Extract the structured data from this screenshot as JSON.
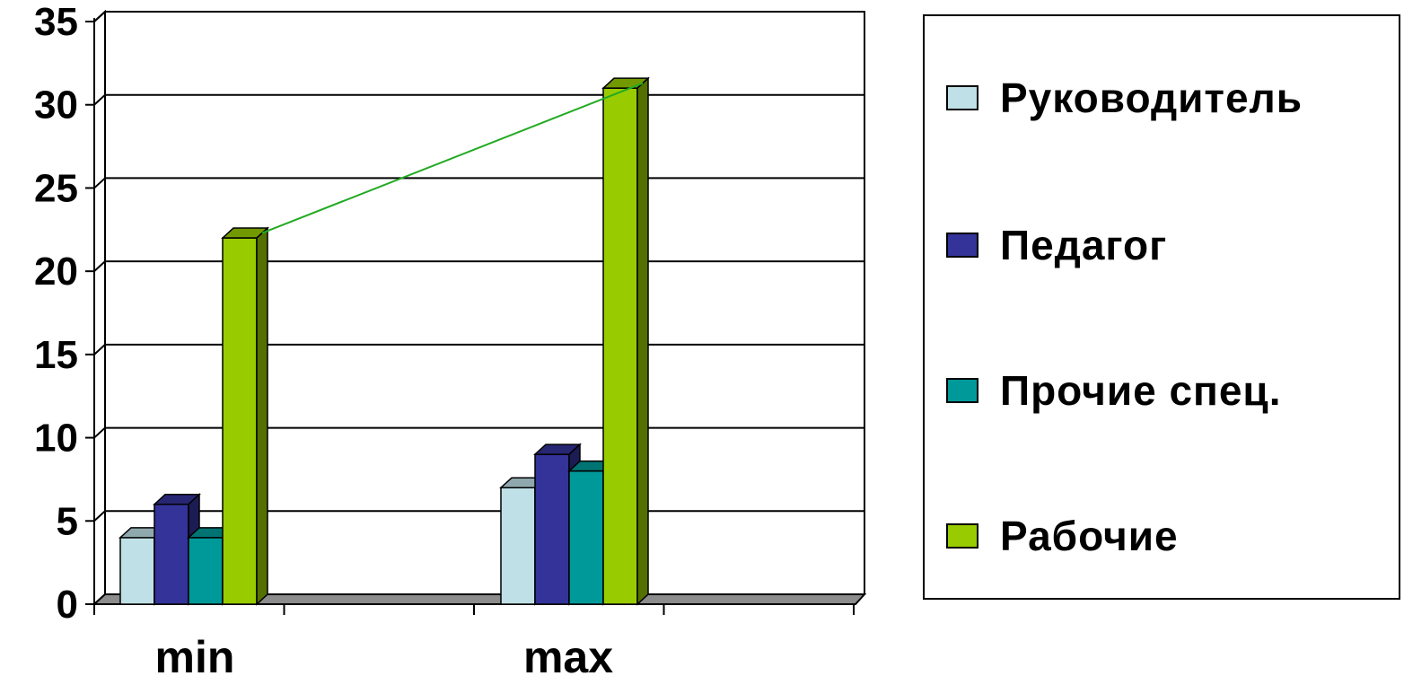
{
  "chart_data": {
    "type": "bar",
    "categories": [
      "min",
      "max"
    ],
    "series": [
      {
        "name": "Руководитель",
        "values": [
          4,
          7
        ],
        "color": "#bfe0e6"
      },
      {
        "name": "Педагог",
        "values": [
          6,
          9
        ],
        "color": "#333399"
      },
      {
        "name": "Прочие спец.",
        "values": [
          4,
          8
        ],
        "color": "#009999"
      },
      {
        "name": "Рабочие",
        "values": [
          22,
          31
        ],
        "color": "#99cc00"
      }
    ],
    "yticks": [
      "0",
      "5",
      "10",
      "15",
      "20",
      "25",
      "30",
      "35"
    ],
    "ylim": [
      0,
      35
    ],
    "grid": true,
    "legend_position": "right",
    "trend_line": {
      "series": "Рабочие",
      "color": "#22aa22"
    }
  }
}
